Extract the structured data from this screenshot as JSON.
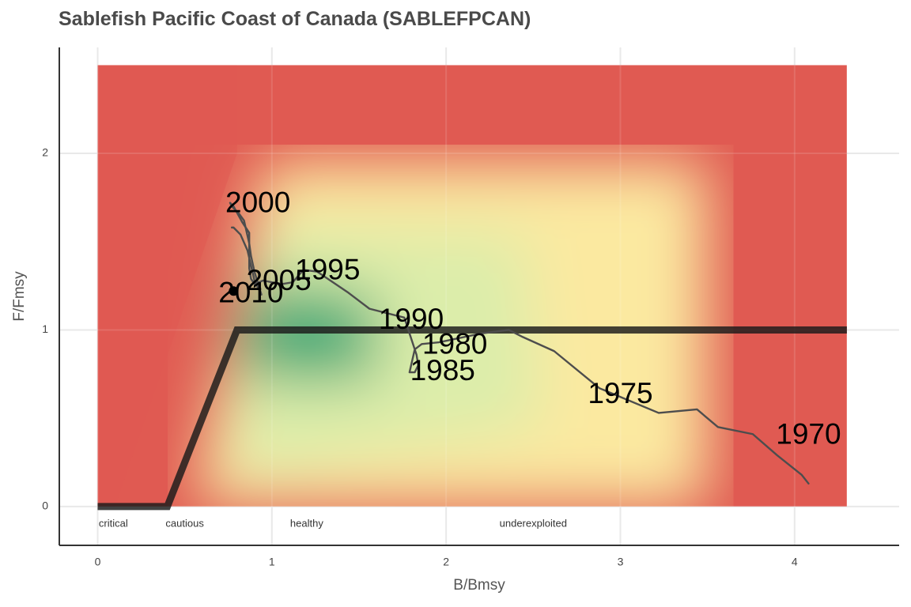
{
  "chart_data": {
    "type": "line",
    "title": "Sablefish Pacific Coast of Canada (SABLEFPCAN)",
    "xlabel": "B/Bmsy",
    "ylabel": "F/Fmsy",
    "xlim": [
      -0.22,
      4.6
    ],
    "ylim": [
      -0.22,
      2.6
    ],
    "x_ticks": [
      0,
      1,
      2,
      3,
      4
    ],
    "y_ticks": [
      0,
      1,
      2
    ],
    "x_tick_labels": [
      "0",
      "1",
      "2",
      "3",
      "4"
    ],
    "y_tick_labels": [
      "0",
      "1",
      "2"
    ],
    "grid": true,
    "background": {
      "type": "heatmap",
      "x_range": [
        0,
        4.3
      ],
      "y_range": [
        0,
        2.5
      ],
      "colors": {
        "red": "#e05a52",
        "yellow": "#fbe9a0",
        "light_green": "#dcedaa",
        "green": "#3aa877"
      }
    },
    "control_rule": {
      "x": [
        0,
        0.4,
        0.8,
        4.3
      ],
      "y": [
        0,
        0,
        1,
        1
      ],
      "color": "#1a1a1a"
    },
    "zones": [
      {
        "label": "critical",
        "x": 0.09
      },
      {
        "label": "cautious",
        "x": 0.5
      },
      {
        "label": "healthy",
        "x": 1.2
      },
      {
        "label": "underexploited",
        "x": 2.5
      }
    ],
    "series": [
      {
        "x": [
          4.08,
          4.04,
          3.9,
          3.76,
          3.56,
          3.44,
          3.22,
          2.88,
          2.62,
          2.44,
          2.36,
          2.2,
          1.96,
          1.86,
          1.82,
          1.79,
          1.82,
          1.84,
          1.83,
          1.76,
          1.56,
          1.44,
          1.32,
          1.26,
          1.18,
          1.12,
          1.06,
          1.0,
          0.95,
          0.9,
          0.88,
          0.87,
          0.87,
          0.83,
          0.78,
          0.76,
          0.77,
          0.81,
          0.84,
          0.87,
          0.88,
          0.9,
          0.94,
          0.9,
          0.86,
          0.82,
          0.78,
          0.77
        ],
        "y": [
          0.13,
          0.18,
          0.29,
          0.41,
          0.45,
          0.55,
          0.53,
          0.67,
          0.88,
          0.96,
          1.0,
          0.98,
          0.93,
          0.92,
          0.89,
          0.76,
          0.76,
          0.8,
          0.86,
          1.07,
          1.12,
          1.21,
          1.29,
          1.33,
          1.34,
          1.27,
          1.26,
          1.27,
          1.28,
          1.26,
          1.29,
          1.35,
          1.55,
          1.61,
          1.7,
          1.72,
          1.7,
          1.66,
          1.62,
          1.49,
          1.42,
          1.33,
          1.2,
          1.28,
          1.45,
          1.54,
          1.58,
          1.58
        ],
        "color": "#4d4d4d"
      }
    ],
    "current_point": {
      "x": 0.78,
      "y": 1.22,
      "color": "#000000"
    },
    "year_labels": [
      {
        "label": "1970",
        "x": 4.08,
        "y": 0.4
      },
      {
        "label": "1975",
        "x": 3.0,
        "y": 0.63
      },
      {
        "label": "1980",
        "x": 2.05,
        "y": 0.91
      },
      {
        "label": "1985",
        "x": 1.98,
        "y": 0.76
      },
      {
        "label": "1990",
        "x": 1.8,
        "y": 1.05
      },
      {
        "label": "1995",
        "x": 1.32,
        "y": 1.33
      },
      {
        "label": "2000",
        "x": 0.92,
        "y": 1.71
      },
      {
        "label": "2005",
        "x": 1.04,
        "y": 1.27
      },
      {
        "label": "2010",
        "x": 0.88,
        "y": 1.2
      }
    ]
  }
}
